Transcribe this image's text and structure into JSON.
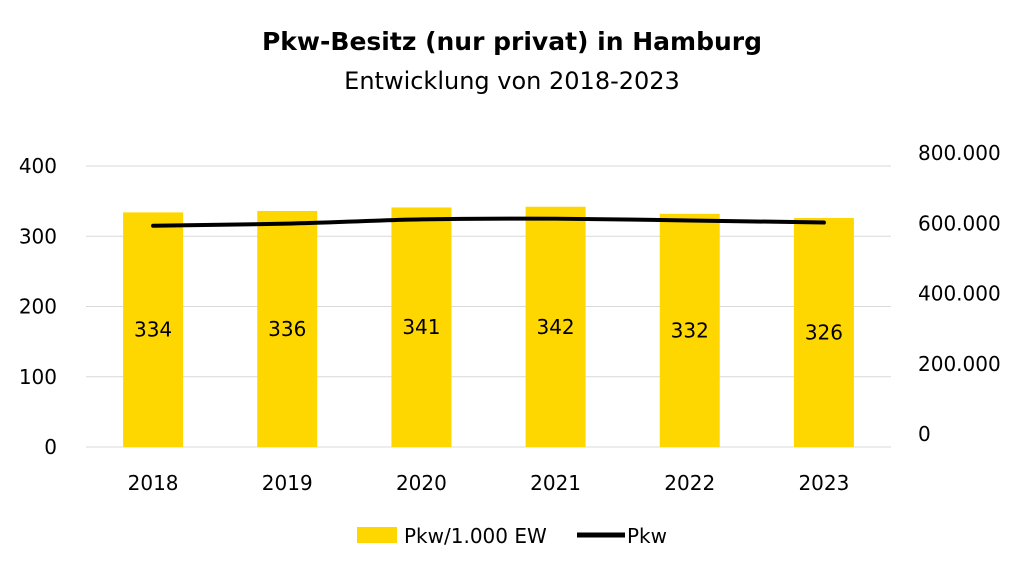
{
  "chart_data": {
    "type": "bar",
    "title": "Pkw-Besitz (nur privat) in Hamburg",
    "subtitle": "Entwicklung von 2018-2023",
    "categories": [
      "2018",
      "2019",
      "2020",
      "2021",
      "2022",
      "2023"
    ],
    "series": [
      {
        "name": "Pkw/1.000 EW",
        "type": "bar",
        "axis": "left",
        "color": "#FFD700",
        "values": [
          334,
          336,
          341,
          342,
          332,
          326
        ],
        "labels": [
          "334",
          "336",
          "341",
          "342",
          "332",
          "326"
        ]
      },
      {
        "name": "Pkw",
        "type": "line",
        "axis": "right",
        "color": "#000000",
        "values": [
          630000,
          636000,
          648000,
          650000,
          645000,
          639000
        ]
      }
    ],
    "ylim_left": [
      0,
      400
    ],
    "ylim_right": [
      0,
      800000
    ],
    "yticks_left": [
      "0",
      "100",
      "200",
      "300",
      "400"
    ],
    "yticks_right": [
      "0",
      "200.000",
      "400.000",
      "600.000",
      "800.000"
    ],
    "grid": true,
    "legend": "bottom-center"
  }
}
